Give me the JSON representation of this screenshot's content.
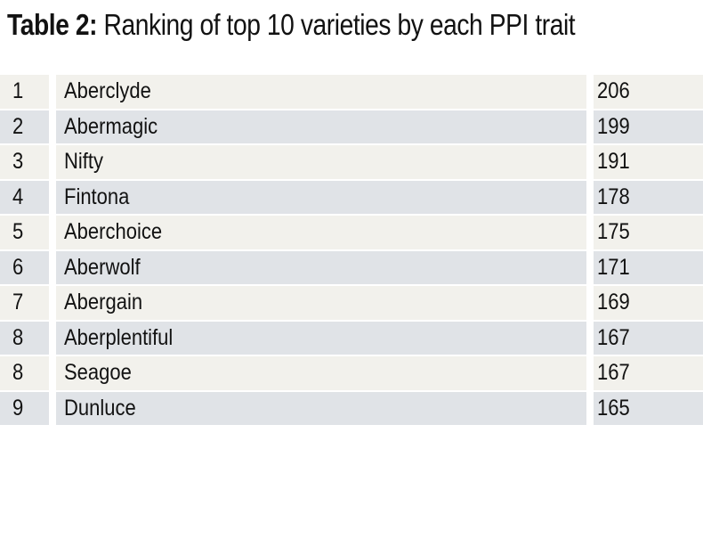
{
  "title": {
    "label": "Table 2:",
    "text": "Ranking of top 10 varieties by each PPI trait"
  },
  "table": {
    "rows": [
      {
        "rank": "1",
        "variety": "Aberclyde",
        "value": "206"
      },
      {
        "rank": "2",
        "variety": "Abermagic",
        "value": "199"
      },
      {
        "rank": "3",
        "variety": "Nifty",
        "value": "191"
      },
      {
        "rank": "4",
        "variety": "Fintona",
        "value": "178"
      },
      {
        "rank": "5",
        "variety": "Aberchoice",
        "value": "175"
      },
      {
        "rank": "6",
        "variety": "Aberwolf",
        "value": "171"
      },
      {
        "rank": "7",
        "variety": "Abergain",
        "value": "169"
      },
      {
        "rank": "8",
        "variety": "Aberplentiful",
        "value": "167"
      },
      {
        "rank": "8",
        "variety": "Seagoe",
        "value": "167"
      },
      {
        "rank": "9",
        "variety": "Dunluce",
        "value": "165"
      }
    ]
  },
  "colors": {
    "row_light": "#f2f1ec",
    "row_dark": "#e0e3e7",
    "text": "#121212"
  }
}
